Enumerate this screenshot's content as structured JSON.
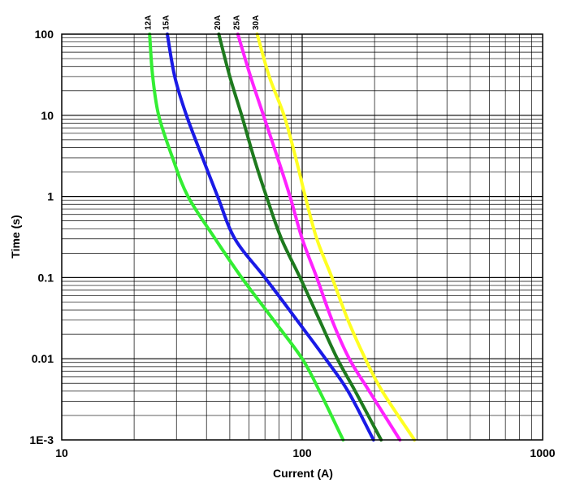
{
  "chart_data": {
    "type": "line",
    "title": "",
    "xlabel": "Current (A)",
    "ylabel": "Time (s)",
    "x_scale": "log",
    "y_scale": "log",
    "xlim": [
      10,
      1000
    ],
    "ylim": [
      0.001,
      100
    ],
    "grid": true,
    "x_tick_labels": [
      {
        "value": 10,
        "label": "10"
      },
      {
        "value": 100,
        "label": "100"
      },
      {
        "value": 1000,
        "label": "1000"
      }
    ],
    "y_tick_labels": [
      {
        "value": 100,
        "label": "100"
      },
      {
        "value": 10,
        "label": "10"
      },
      {
        "value": 1,
        "label": "1"
      },
      {
        "value": 0.1,
        "label": "0.1"
      },
      {
        "value": 0.01,
        "label": "0.01"
      },
      {
        "value": 0.001,
        "label": "1E-3"
      }
    ],
    "series": [
      {
        "name": "12A",
        "color": "#33ee33",
        "points": [
          [
            23.2,
            100
          ],
          [
            23.9,
            30
          ],
          [
            25.3,
            10
          ],
          [
            28.9,
            3
          ],
          [
            33.5,
            1
          ],
          [
            43.5,
            0.3
          ],
          [
            56,
            0.1
          ],
          [
            76,
            0.03
          ],
          [
            100,
            0.01
          ],
          [
            118,
            0.004
          ],
          [
            148,
            0.001
          ]
        ]
      },
      {
        "name": "15A",
        "color": "#1a1ae6",
        "points": [
          [
            27.5,
            100
          ],
          [
            29.5,
            30
          ],
          [
            33,
            10
          ],
          [
            38.5,
            3
          ],
          [
            44.5,
            1
          ],
          [
            52.5,
            0.3
          ],
          [
            70,
            0.1
          ],
          [
            95,
            0.03
          ],
          [
            125,
            0.01
          ],
          [
            155,
            0.004
          ],
          [
            198,
            0.001
          ]
        ]
      },
      {
        "name": "20A",
        "color": "#1e7a1e",
        "points": [
          [
            45,
            100
          ],
          [
            50,
            30
          ],
          [
            56,
            10
          ],
          [
            63,
            3
          ],
          [
            71,
            1
          ],
          [
            82,
            0.3
          ],
          [
            98,
            0.1
          ],
          [
            118,
            0.03
          ],
          [
            140,
            0.01
          ],
          [
            166,
            0.004
          ],
          [
            213,
            0.001
          ]
        ]
      },
      {
        "name": "25A",
        "color": "#ff22ff",
        "points": [
          [
            54,
            100
          ],
          [
            61,
            30
          ],
          [
            69,
            10
          ],
          [
            79,
            3
          ],
          [
            89,
            1
          ],
          [
            100,
            0.3
          ],
          [
            115,
            0.1
          ],
          [
            133,
            0.03
          ],
          [
            157,
            0.01
          ],
          [
            190,
            0.004
          ],
          [
            255,
            0.001
          ]
        ]
      },
      {
        "name": "30A",
        "color": "#ffff22",
        "points": [
          [
            65,
            100
          ],
          [
            73,
            30
          ],
          [
            84,
            10
          ],
          [
            94,
            3
          ],
          [
            103,
            1
          ],
          [
            115,
            0.3
          ],
          [
            133,
            0.1
          ],
          [
            155,
            0.03
          ],
          [
            183,
            0.01
          ],
          [
            215,
            0.004
          ],
          [
            293,
            0.001
          ]
        ]
      }
    ]
  }
}
